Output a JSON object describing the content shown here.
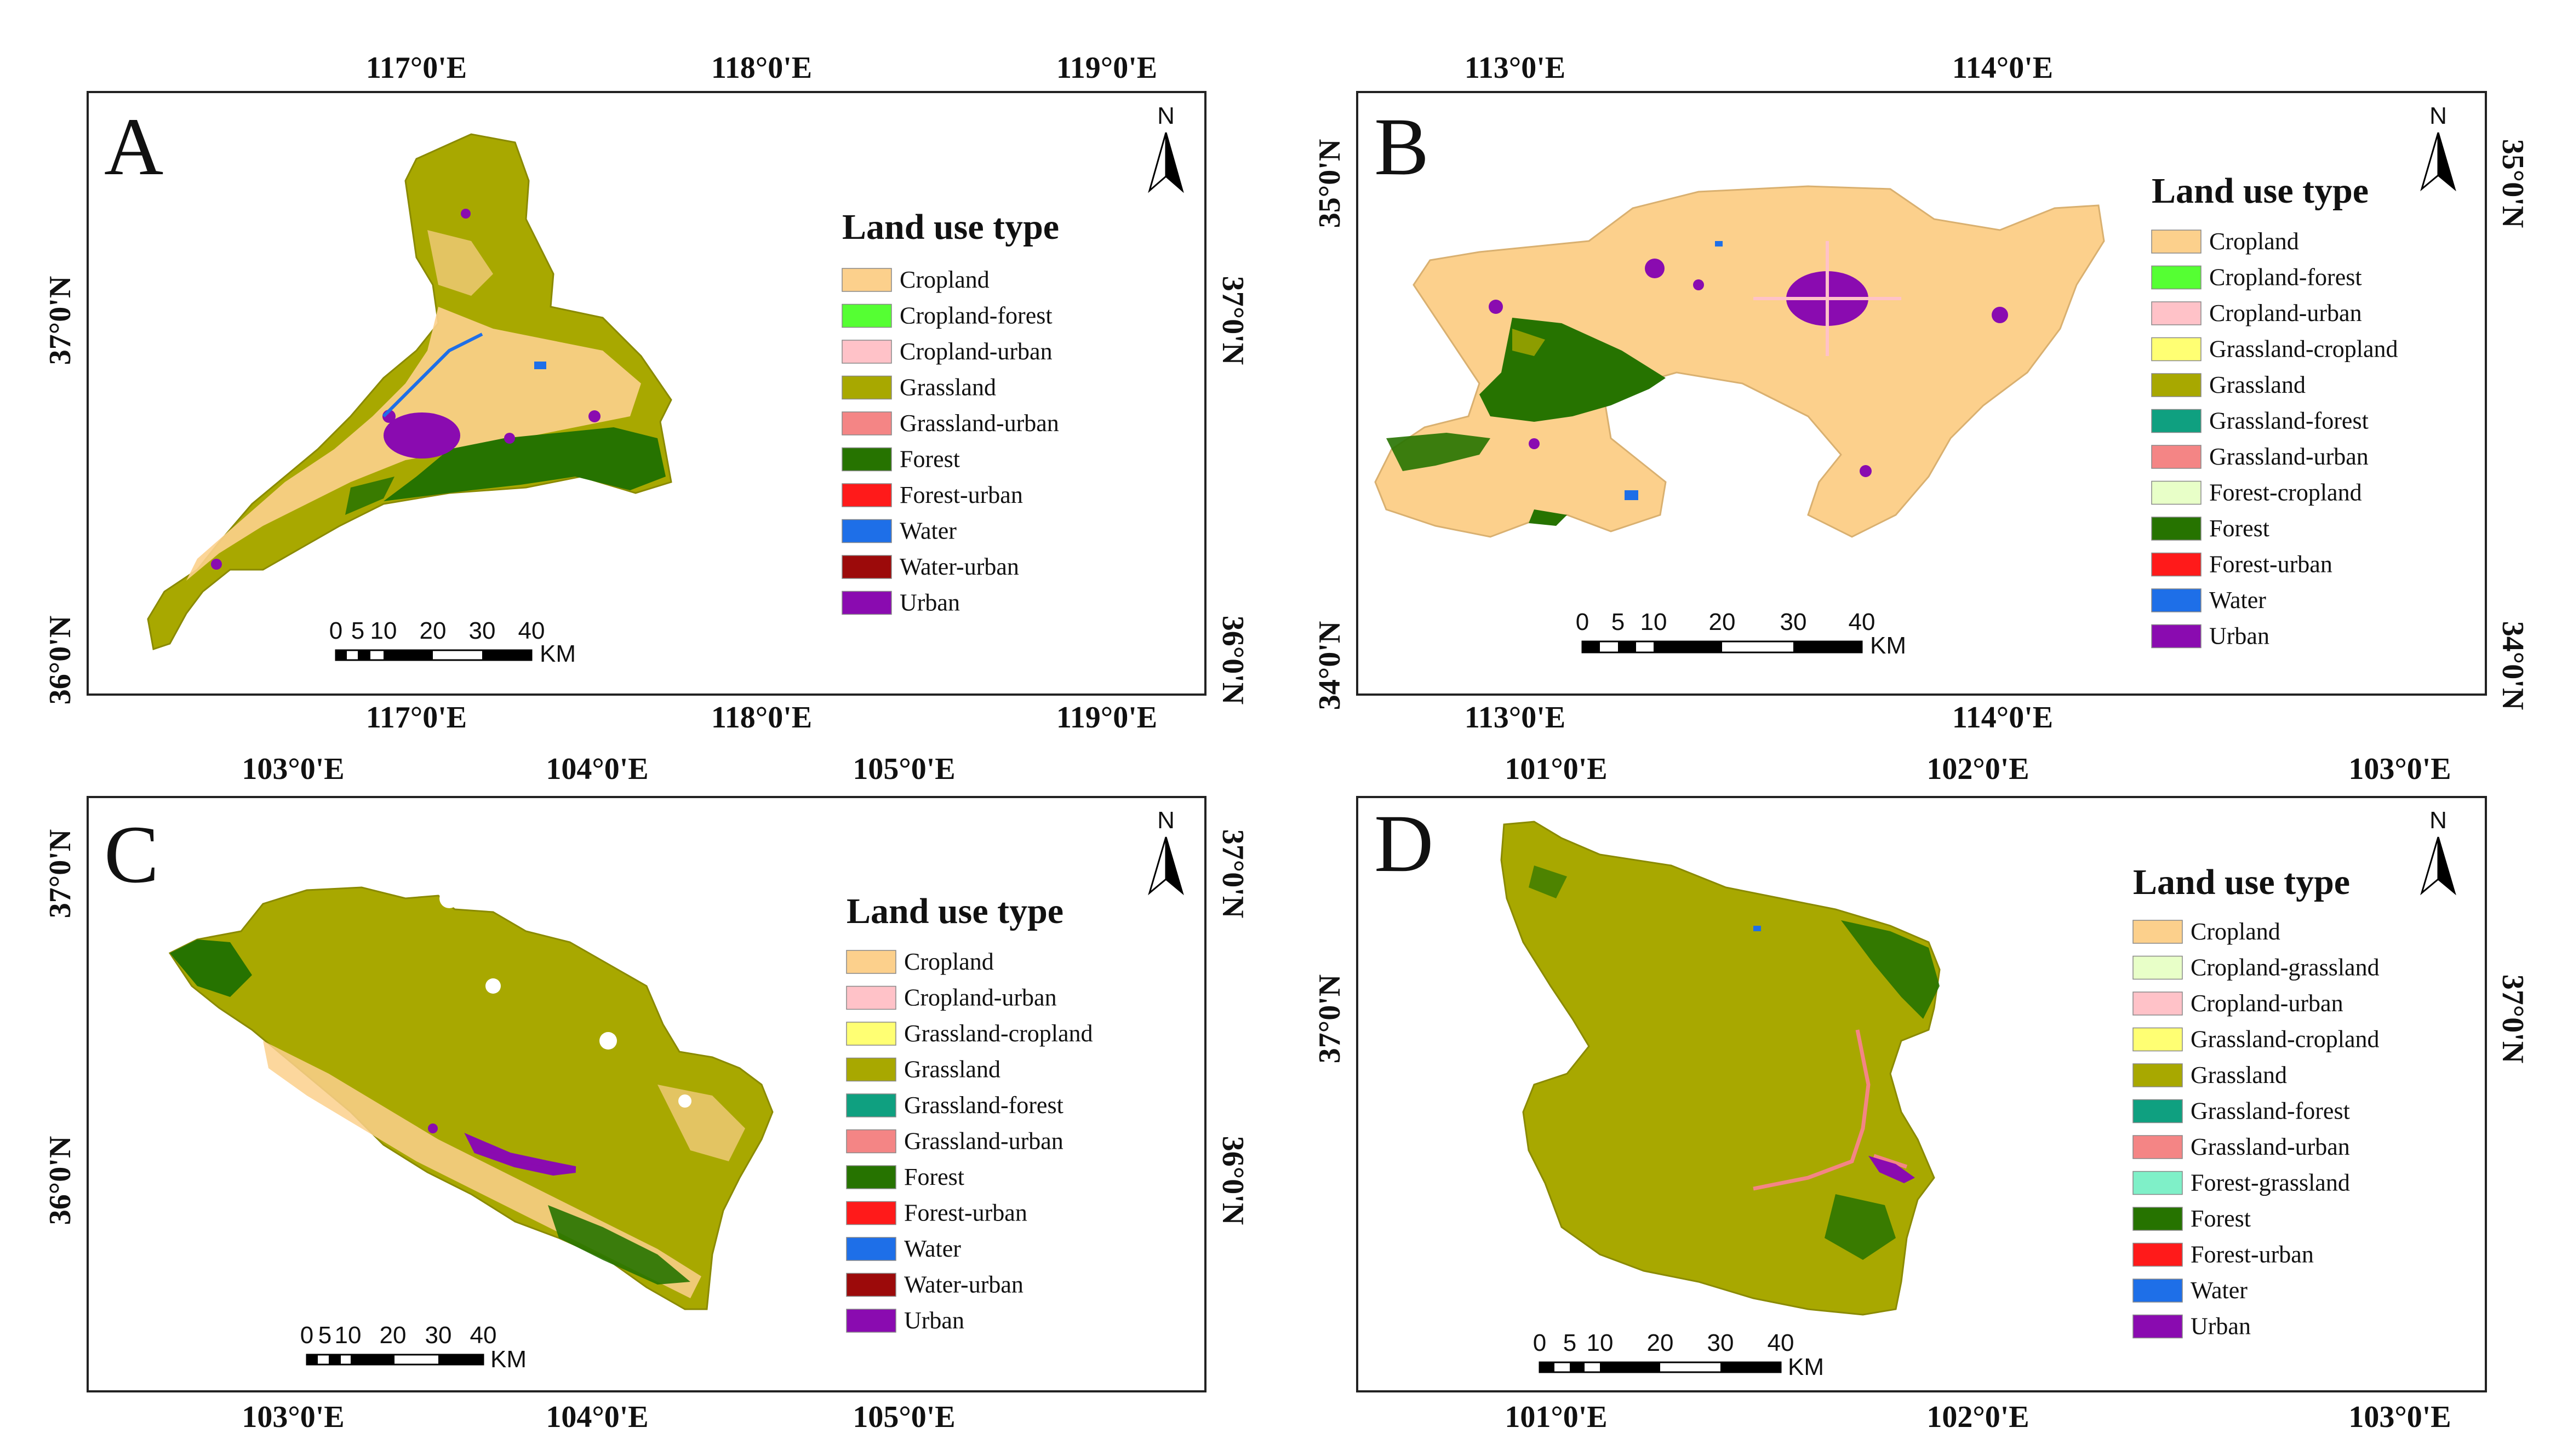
{
  "panels": [
    {
      "letter": "A",
      "north": "N",
      "lon_ticks": [
        "117°0'E",
        "118°0'E",
        "119°0'E"
      ],
      "lat_ticks": [
        "37°0'N",
        "36°0'N"
      ],
      "legend_title": "Land use type",
      "scale_ticks": [
        "0",
        "5",
        "10",
        "20",
        "30",
        "40"
      ],
      "scale_unit": "KM",
      "legend": [
        {
          "label": "Cropland",
          "color": "#fcd08c"
        },
        {
          "label": "Cropland-forest",
          "color": "#55ff33"
        },
        {
          "label": "Cropland-urban",
          "color": "#ffc2c8"
        },
        {
          "label": "Grassland",
          "color": "#a8a800"
        },
        {
          "label": "Grassland-urban",
          "color": "#f48585"
        },
        {
          "label": "Forest",
          "color": "#267300"
        },
        {
          "label": "Forest-urban",
          "color": "#ff1a1a"
        },
        {
          "label": "Water",
          "color": "#1e6fe8"
        },
        {
          "label": "Water-urban",
          "color": "#9c0a0a"
        },
        {
          "label": "Urban",
          "color": "#8a0bb0"
        }
      ]
    },
    {
      "letter": "B",
      "north": "N",
      "lon_ticks": [
        "113°0'E",
        "114°0'E"
      ],
      "lat_ticks": [
        "35°0'N",
        "34°0'N"
      ],
      "legend_title": "Land use type",
      "scale_ticks": [
        "0",
        "5",
        "10",
        "20",
        "30",
        "40"
      ],
      "scale_unit": "KM",
      "legend": [
        {
          "label": "Cropland",
          "color": "#fcd08c"
        },
        {
          "label": "Cropland-forest",
          "color": "#55ff33"
        },
        {
          "label": "Cropland-urban",
          "color": "#ffc2c8"
        },
        {
          "label": "Grassland-cropland",
          "color": "#ffff73"
        },
        {
          "label": "Grassland",
          "color": "#a8a800"
        },
        {
          "label": "Grassland-forest",
          "color": "#0fa080"
        },
        {
          "label": "Grassland-urban",
          "color": "#f48585"
        },
        {
          "label": "Forest-cropland",
          "color": "#e8ffc8"
        },
        {
          "label": "Forest",
          "color": "#267300"
        },
        {
          "label": "Forest-urban",
          "color": "#ff1a1a"
        },
        {
          "label": "Water",
          "color": "#1e6fe8"
        },
        {
          "label": "Urban",
          "color": "#8a0bb0"
        }
      ]
    },
    {
      "letter": "C",
      "north": "N",
      "lon_ticks": [
        "103°0'E",
        "104°0'E",
        "105°0'E"
      ],
      "lat_ticks": [
        "37°0'N",
        "36°0'N"
      ],
      "legend_title": "Land use type",
      "scale_ticks": [
        "0",
        "5",
        "10",
        "20",
        "30",
        "40"
      ],
      "scale_unit": "KM",
      "legend": [
        {
          "label": "Cropland",
          "color": "#fcd08c"
        },
        {
          "label": "Cropland-urban",
          "color": "#ffc2c8"
        },
        {
          "label": "Grassland-cropland",
          "color": "#ffff73"
        },
        {
          "label": "Grassland",
          "color": "#a8a800"
        },
        {
          "label": "Grassland-forest",
          "color": "#0fa080"
        },
        {
          "label": "Grassland-urban",
          "color": "#f48585"
        },
        {
          "label": "Forest",
          "color": "#267300"
        },
        {
          "label": "Forest-urban",
          "color": "#ff1a1a"
        },
        {
          "label": "Water",
          "color": "#1e6fe8"
        },
        {
          "label": "Water-urban",
          "color": "#9c0a0a"
        },
        {
          "label": "Urban",
          "color": "#8a0bb0"
        }
      ]
    },
    {
      "letter": "D",
      "north": "N",
      "lon_ticks": [
        "101°0'E",
        "102°0'E",
        "103°0'E"
      ],
      "lat_ticks": [
        "37°0'N"
      ],
      "legend_title": "Land use type",
      "scale_ticks": [
        "0",
        "5",
        "10",
        "20",
        "30",
        "40"
      ],
      "scale_unit": "KM",
      "legend": [
        {
          "label": "Cropland",
          "color": "#fcd08c"
        },
        {
          "label": "Cropland-grassland",
          "color": "#e8ffc8"
        },
        {
          "label": "Cropland-urban",
          "color": "#ffc2c8"
        },
        {
          "label": "Grassland-cropland",
          "color": "#ffff73"
        },
        {
          "label": "Grassland",
          "color": "#a8a800"
        },
        {
          "label": "Grassland-forest",
          "color": "#0fa080"
        },
        {
          "label": "Grassland-urban",
          "color": "#f48585"
        },
        {
          "label": "Forest-grassland",
          "color": "#7ff0c8"
        },
        {
          "label": "Forest",
          "color": "#267300"
        },
        {
          "label": "Forest-urban",
          "color": "#ff1a1a"
        },
        {
          "label": "Water",
          "color": "#1e6fe8"
        },
        {
          "label": "Urban",
          "color": "#8a0bb0"
        }
      ]
    }
  ]
}
